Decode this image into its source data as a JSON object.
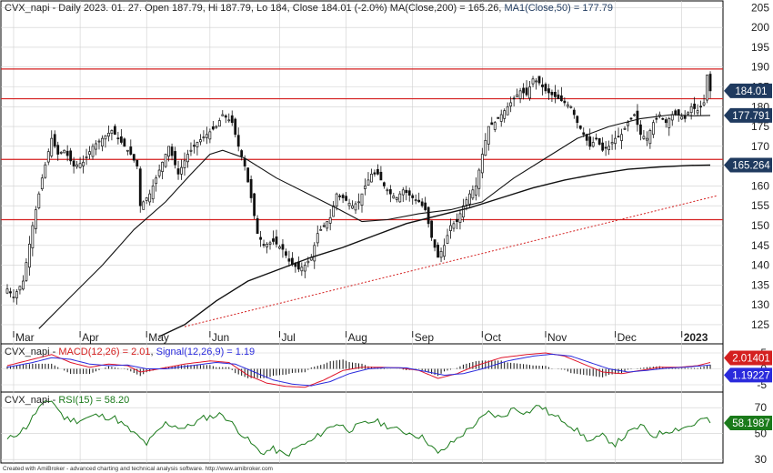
{
  "chart_data": [
    {
      "type": "candlestick",
      "panel": "price",
      "title": "CVX_napi - Daily 2023. 01. 27. Open 187.79, Hi 187.79, Lo 184, Close 184.01 (-2.0%) MA(Close,200) = 165.26, MA1(Close,50) = 177.79",
      "header": {
        "prefix": "CVX_napi - Daily 2023. 01. 27. Open 187.79, Hi 187.79, Lo 184, Close 184.01 (-2.0%) ",
        "ma200_label": "MA(Close,200) = 165.26",
        "ma50_label": "MA1(Close,50) = 177.79"
      },
      "x_labels": [
        "Mar",
        "Apr",
        "May",
        "Jun",
        "Jul",
        "Aug",
        "Sep",
        "Oct",
        "Nov",
        "Dec",
        "2023"
      ],
      "month_index": [
        2,
        23,
        44,
        64,
        86,
        107,
        128,
        150,
        170,
        192,
        213
      ],
      "y_ticks": [
        205,
        200,
        195,
        190,
        185,
        180,
        175,
        170,
        165,
        160,
        155,
        150,
        145,
        140,
        135,
        130,
        125
      ],
      "ylim": [
        122,
        206
      ],
      "y_tick_labels": [
        "205",
        "200",
        "195",
        "190",
        "185",
        "180",
        "175",
        "170",
        "165",
        "160",
        "155",
        "150",
        "145",
        "140",
        "135",
        "130",
        "125"
      ],
      "grid": true,
      "horizontal_levels": [
        189.5,
        182.0,
        166.7,
        151.5
      ],
      "trendline": {
        "start": [
          56,
          124.5
        ],
        "end": [
          224,
          157.5
        ]
      },
      "last_close_tag": "184.01",
      "ma50_tag": "177.791",
      "ma200_tag": "165.264",
      "close_anchors": [
        [
          0,
          134
        ],
        [
          2,
          132
        ],
        [
          5,
          136
        ],
        [
          8,
          150
        ],
        [
          11,
          162
        ],
        [
          14,
          172
        ],
        [
          16,
          168
        ],
        [
          18,
          169
        ],
        [
          21,
          165
        ],
        [
          24,
          166
        ],
        [
          27,
          170
        ],
        [
          30,
          172
        ],
        [
          33,
          174
        ],
        [
          36,
          171
        ],
        [
          39,
          168
        ],
        [
          41,
          165
        ],
        [
          42,
          155
        ],
        [
          45,
          158
        ],
        [
          48,
          164
        ],
        [
          51,
          170
        ],
        [
          54,
          163
        ],
        [
          57,
          168
        ],
        [
          60,
          171
        ],
        [
          63,
          173
        ],
        [
          66,
          175
        ],
        [
          68,
          178
        ],
        [
          71,
          176
        ],
        [
          73,
          170
        ],
        [
          75,
          165
        ],
        [
          77,
          157
        ],
        [
          79,
          148
        ],
        [
          81,
          145
        ],
        [
          84,
          146
        ],
        [
          87,
          144
        ],
        [
          89,
          141
        ],
        [
          92,
          139
        ],
        [
          94,
          140
        ],
        [
          96,
          142
        ],
        [
          98,
          148
        ],
        [
          100,
          150
        ],
        [
          102,
          152
        ],
        [
          104,
          158
        ],
        [
          106,
          157
        ],
        [
          109,
          155
        ],
        [
          111,
          156
        ],
        [
          113,
          160
        ],
        [
          115,
          163
        ],
        [
          117,
          163
        ],
        [
          119,
          160
        ],
        [
          121,
          158
        ],
        [
          123,
          157
        ],
        [
          125,
          159
        ],
        [
          128,
          157
        ],
        [
          130,
          156
        ],
        [
          132,
          154
        ],
        [
          134,
          147
        ],
        [
          136,
          142
        ],
        [
          138,
          145
        ],
        [
          140,
          150
        ],
        [
          142,
          151
        ],
        [
          144,
          155
        ],
        [
          146,
          158
        ],
        [
          148,
          160
        ],
        [
          150,
          168
        ],
        [
          152,
          175
        ],
        [
          154,
          176
        ],
        [
          156,
          178
        ],
        [
          158,
          180
        ],
        [
          160,
          182
        ],
        [
          162,
          184
        ],
        [
          164,
          183
        ],
        [
          166,
          187
        ],
        [
          168,
          186
        ],
        [
          170,
          184
        ],
        [
          172,
          183
        ],
        [
          174,
          182
        ],
        [
          176,
          181
        ],
        [
          178,
          180
        ],
        [
          180,
          176
        ],
        [
          182,
          173
        ],
        [
          184,
          170
        ],
        [
          186,
          172
        ],
        [
          188,
          169
        ],
        [
          190,
          170
        ],
        [
          192,
          172
        ],
        [
          194,
          173
        ],
        [
          196,
          176
        ],
        [
          198,
          178
        ],
        [
          200,
          173
        ],
        [
          202,
          172
        ],
        [
          204,
          176
        ],
        [
          206,
          178
        ],
        [
          208,
          176
        ],
        [
          210,
          178
        ],
        [
          212,
          178
        ],
        [
          214,
          177
        ],
        [
          216,
          180
        ],
        [
          218,
          179
        ],
        [
          220,
          181
        ],
        [
          221,
          188
        ],
        [
          222,
          184
        ]
      ],
      "ma50_anchors": [
        [
          10,
          124
        ],
        [
          20,
          132
        ],
        [
          30,
          140
        ],
        [
          40,
          149
        ],
        [
          50,
          156
        ],
        [
          58,
          163
        ],
        [
          64,
          168
        ],
        [
          68,
          169
        ],
        [
          75,
          167
        ],
        [
          85,
          162
        ],
        [
          95,
          158
        ],
        [
          105,
          154
        ],
        [
          112,
          151
        ],
        [
          120,
          151.5
        ],
        [
          130,
          153
        ],
        [
          140,
          154
        ],
        [
          150,
          156
        ],
        [
          160,
          162
        ],
        [
          170,
          167
        ],
        [
          180,
          172
        ],
        [
          190,
          175
        ],
        [
          200,
          177
        ],
        [
          210,
          178
        ],
        [
          216,
          177.7
        ],
        [
          222,
          177.8
        ]
      ],
      "ma200_anchors": [
        [
          48,
          122
        ],
        [
          56,
          125
        ],
        [
          66,
          131
        ],
        [
          76,
          136
        ],
        [
          86,
          139
        ],
        [
          96,
          142
        ],
        [
          106,
          144.5
        ],
        [
          116,
          147.5
        ],
        [
          126,
          150.5
        ],
        [
          136,
          152.5
        ],
        [
          146,
          154.5
        ],
        [
          156,
          157
        ],
        [
          166,
          159.5
        ],
        [
          176,
          161.5
        ],
        [
          186,
          163
        ],
        [
          196,
          164.2
        ],
        [
          206,
          164.8
        ],
        [
          216,
          165.2
        ],
        [
          222,
          165.26
        ]
      ]
    },
    {
      "type": "line",
      "panel": "macd",
      "title": "CVX_napi - MACD(12,26) = 2.01, Signal(12,26,9) = 1.19",
      "header": {
        "prefix": "CVX_napi - ",
        "macd_label": "MACD(12,26) = 2.01",
        "sep": ", ",
        "signal_label": "Signal(12,26,9) = 1.19"
      },
      "y_ticks": [
        5,
        0,
        -5
      ],
      "y_tick_labels": [
        "5",
        "0",
        "-5"
      ],
      "ylim": [
        -7,
        7
      ],
      "macd_tag": "2.01401",
      "signal_tag": "1.19227",
      "macd_anchors": [
        [
          0,
          1
        ],
        [
          8,
          3
        ],
        [
          14,
          4.5
        ],
        [
          20,
          2
        ],
        [
          26,
          0.5
        ],
        [
          32,
          1.5
        ],
        [
          38,
          1
        ],
        [
          42,
          -1
        ],
        [
          48,
          0
        ],
        [
          56,
          1.5
        ],
        [
          64,
          2.5
        ],
        [
          70,
          2
        ],
        [
          76,
          -2
        ],
        [
          82,
          -4.5
        ],
        [
          88,
          -5.5
        ],
        [
          94,
          -5.8
        ],
        [
          100,
          -3.5
        ],
        [
          106,
          -0.5
        ],
        [
          112,
          0.5
        ],
        [
          118,
          0.5
        ],
        [
          124,
          0.3
        ],
        [
          130,
          -0.5
        ],
        [
          136,
          -3
        ],
        [
          142,
          -1.5
        ],
        [
          148,
          1
        ],
        [
          156,
          3.5
        ],
        [
          164,
          4.5
        ],
        [
          170,
          5
        ],
        [
          176,
          4
        ],
        [
          182,
          1.5
        ],
        [
          188,
          -1
        ],
        [
          194,
          -1.5
        ],
        [
          200,
          -0.5
        ],
        [
          206,
          0.5
        ],
        [
          212,
          0.5
        ],
        [
          218,
          1
        ],
        [
          222,
          2.01
        ]
      ],
      "signal_anchors": [
        [
          0,
          0.5
        ],
        [
          8,
          2
        ],
        [
          14,
          3.5
        ],
        [
          20,
          3
        ],
        [
          26,
          1.5
        ],
        [
          32,
          1
        ],
        [
          38,
          1.2
        ],
        [
          44,
          0
        ],
        [
          50,
          0
        ],
        [
          58,
          1
        ],
        [
          66,
          2
        ],
        [
          72,
          1.5
        ],
        [
          78,
          -1
        ],
        [
          84,
          -3.5
        ],
        [
          90,
          -4.8
        ],
        [
          96,
          -5.3
        ],
        [
          102,
          -4
        ],
        [
          108,
          -1.5
        ],
        [
          114,
          0
        ],
        [
          120,
          0.4
        ],
        [
          126,
          0.3
        ],
        [
          132,
          -0.8
        ],
        [
          138,
          -2
        ],
        [
          144,
          -1.5
        ],
        [
          150,
          0
        ],
        [
          158,
          2.5
        ],
        [
          166,
          4
        ],
        [
          172,
          4.6
        ],
        [
          178,
          4
        ],
        [
          184,
          2
        ],
        [
          190,
          0
        ],
        [
          196,
          -1
        ],
        [
          202,
          -0.5
        ],
        [
          208,
          0.2
        ],
        [
          214,
          0.5
        ],
        [
          222,
          1.19
        ]
      ],
      "colors": {
        "macd": "#e0162b",
        "signal": "#2a2adc",
        "hist": "#111111"
      }
    },
    {
      "type": "line",
      "panel": "rsi",
      "title": "CVX_napi - RSI(15) = 58.20",
      "header": {
        "prefix": "CVX_napi - ",
        "rsi_label": "RSI(15) = 58.20"
      },
      "y_ticks": [
        70,
        50,
        30
      ],
      "y_tick_labels": [
        "70",
        "50",
        "30"
      ],
      "ylim": [
        28,
        80
      ],
      "rsi_tag": "58.1987",
      "rsi_anchors": [
        [
          0,
          45
        ],
        [
          6,
          55
        ],
        [
          10,
          70
        ],
        [
          14,
          76
        ],
        [
          18,
          62
        ],
        [
          22,
          60
        ],
        [
          28,
          64
        ],
        [
          34,
          62
        ],
        [
          40,
          50
        ],
        [
          44,
          42
        ],
        [
          50,
          58
        ],
        [
          56,
          54
        ],
        [
          62,
          62
        ],
        [
          68,
          65
        ],
        [
          72,
          55
        ],
        [
          76,
          45
        ],
        [
          80,
          35
        ],
        [
          84,
          38
        ],
        [
          88,
          33
        ],
        [
          92,
          40
        ],
        [
          96,
          44
        ],
        [
          100,
          52
        ],
        [
          104,
          58
        ],
        [
          108,
          53
        ],
        [
          112,
          57
        ],
        [
          116,
          60
        ],
        [
          120,
          56
        ],
        [
          124,
          52
        ],
        [
          128,
          50
        ],
        [
          132,
          46
        ],
        [
          136,
          34
        ],
        [
          140,
          42
        ],
        [
          144,
          50
        ],
        [
          148,
          58
        ],
        [
          152,
          66
        ],
        [
          156,
          62
        ],
        [
          160,
          70
        ],
        [
          164,
          66
        ],
        [
          168,
          72
        ],
        [
          172,
          64
        ],
        [
          176,
          60
        ],
        [
          180,
          52
        ],
        [
          184,
          44
        ],
        [
          188,
          48
        ],
        [
          192,
          42
        ],
        [
          196,
          50
        ],
        [
          200,
          56
        ],
        [
          204,
          48
        ],
        [
          208,
          52
        ],
        [
          212,
          54
        ],
        [
          216,
          56
        ],
        [
          220,
          62
        ],
        [
          222,
          58.2
        ]
      ],
      "color": "#1a7a1a"
    }
  ],
  "footer": {
    "credit": "Created with AmiBroker - advanced charting and technical analysis software. http://www.amibroker.com"
  },
  "colors": {
    "candle_up": "#ffffff",
    "candle_down": "#111111",
    "ma50": "#111111",
    "ma200": "#111111",
    "levels": "#d42020",
    "trendline": "#d42020",
    "price_tag_bg": "#1f3a5f",
    "macd_tag_bg": "#d42020",
    "signal_tag_bg": "#2a2adc",
    "rsi_tag_bg": "#1a7a1a",
    "grid": "#cfcfcf"
  }
}
